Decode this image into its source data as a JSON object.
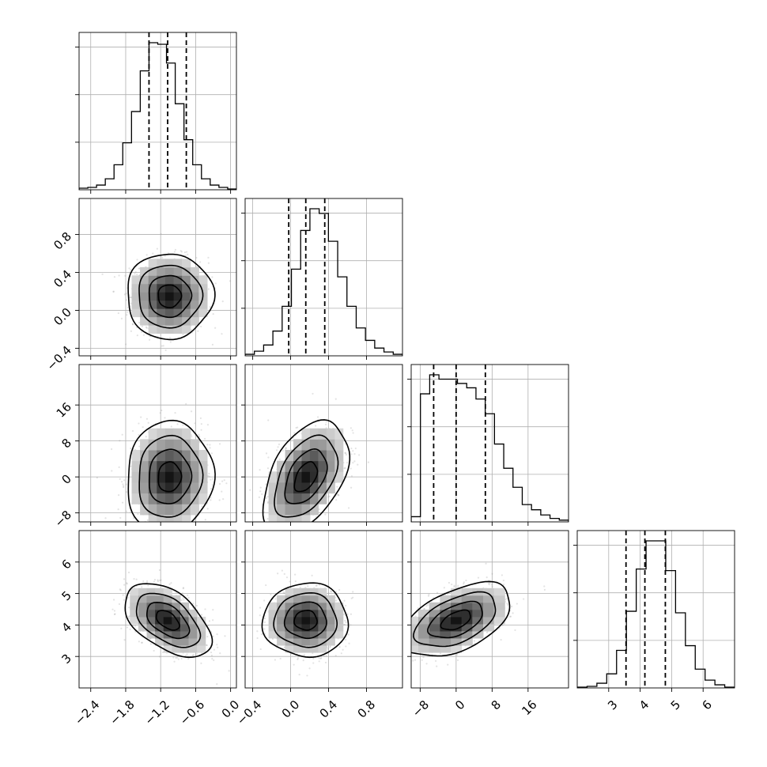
{
  "chart_data": {
    "type": "corner",
    "parameters": [
      {
        "range": [
          -2.6,
          0.1
        ],
        "ticks": [
          -2.4,
          -1.8,
          -1.2,
          -0.6,
          0.0
        ],
        "tick_labels": [
          "−2.4",
          "−1.8",
          "−1.2",
          "−0.6",
          "0.0"
        ],
        "quantiles": [
          -1.4,
          -1.08,
          -0.76
        ]
      },
      {
        "range": [
          -0.48,
          1.18
        ],
        "ticks": [
          -0.4,
          0.0,
          0.4,
          0.8
        ],
        "tick_labels": [
          "−0.4",
          "0.0",
          "0.4",
          "0.8"
        ],
        "quantiles": [
          -0.02,
          0.16,
          0.36
        ]
      },
      {
        "range": [
          -10,
          25
        ],
        "ticks": [
          -8,
          0,
          8,
          16
        ],
        "tick_labels": [
          "−8",
          "0",
          "8",
          "16"
        ],
        "quantiles": [
          -5,
          0,
          6.5
        ]
      },
      {
        "range": [
          2.0,
          7.0
        ],
        "ticks": [
          3,
          4,
          5,
          6
        ],
        "tick_labels": [
          "3",
          "4",
          "5",
          "6"
        ],
        "quantiles": [
          3.55,
          4.15,
          4.8
        ]
      }
    ],
    "histograms": [
      {
        "counts": [
          2,
          3,
          6,
          14,
          32,
          60,
          100,
          152,
          188,
          186,
          162,
          110,
          64,
          32,
          14,
          6,
          3,
          1
        ]
      },
      {
        "counts": [
          2,
          6,
          14,
          32,
          64,
          112,
          162,
          190,
          184,
          148,
          102,
          64,
          36,
          20,
          10,
          5,
          2
        ]
      },
      {
        "counts": [
          6,
          148,
          170,
          165,
          165,
          160,
          155,
          142,
          125,
          90,
          62,
          40,
          20,
          14,
          8,
          4,
          2
        ]
      },
      {
        "counts": [
          1,
          2,
          6,
          18,
          48,
          98,
          152,
          188,
          188,
          150,
          96,
          54,
          24,
          10,
          4,
          1
        ]
      }
    ],
    "pairs": [
      {
        "row": 1,
        "col": 0,
        "mean": [
          -1.05,
          0.15
        ],
        "sd": [
          0.33,
          0.2
        ],
        "rho": 0.0,
        "contour_radii": [
          0.6,
          1.1,
          1.65,
          2.25
        ]
      },
      {
        "row": 2,
        "col": 0,
        "mean": [
          -1.05,
          0.0
        ],
        "sd": [
          0.33,
          5.5
        ],
        "rho": 0.05,
        "contour_radii": [
          0.6,
          1.1,
          1.65,
          2.25
        ]
      },
      {
        "row": 2,
        "col": 1,
        "mean": [
          0.16,
          0.0
        ],
        "sd": [
          0.2,
          5.5
        ],
        "rho": 0.45,
        "contour_radii": [
          0.6,
          1.1,
          1.65,
          2.25
        ]
      },
      {
        "row": 3,
        "col": 0,
        "mean": [
          -1.08,
          4.15
        ],
        "sd": [
          0.33,
          0.52
        ],
        "rho": -0.5,
        "contour_radii": [
          0.6,
          1.1,
          1.65,
          2.25
        ]
      },
      {
        "row": 3,
        "col": 1,
        "mean": [
          0.16,
          4.15
        ],
        "sd": [
          0.2,
          0.52
        ],
        "rho": 0.0,
        "contour_radii": [
          0.6,
          1.1,
          1.65,
          2.25
        ]
      },
      {
        "row": 3,
        "col": 2,
        "mean": [
          0.0,
          4.15
        ],
        "sd": [
          5.5,
          0.52
        ],
        "rho": 0.5,
        "contour_radii": [
          0.6,
          1.1,
          1.65,
          2.25
        ]
      }
    ],
    "grid": true,
    "title": "",
    "xlabel": "",
    "ylabel": ""
  }
}
